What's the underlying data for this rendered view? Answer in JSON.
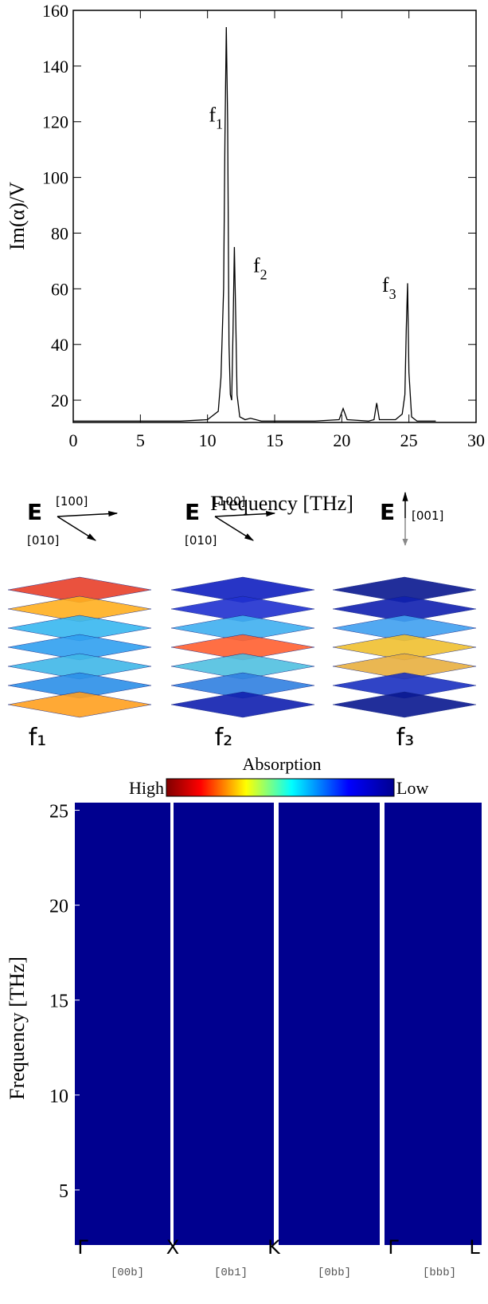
{
  "chart_data": [
    {
      "type": "line",
      "x_label": "Frequency [THz]",
      "y_label": "Im(α)/V",
      "xlim": [
        0,
        30
      ],
      "ylim": [
        12,
        160
      ],
      "xticks": [
        0,
        5,
        10,
        15,
        20,
        25,
        30
      ],
      "yticks": [
        20,
        40,
        60,
        80,
        100,
        120,
        140,
        160
      ],
      "series": [
        {
          "color": "#000000",
          "x": [
            0,
            5,
            8,
            10,
            10.8,
            11.0,
            11.2,
            11.3,
            11.4,
            11.5,
            11.6,
            11.7,
            11.8,
            11.9,
            12.0,
            12.1,
            12.2,
            12.4,
            12.8,
            13.2,
            14,
            18,
            19.8,
            20.1,
            20.4,
            22,
            22.4,
            22.6,
            22.8,
            24,
            24.5,
            24.7,
            24.8,
            24.9,
            25.0,
            25.2,
            25.6,
            27
          ],
          "values": [
            12.5,
            12.5,
            12.5,
            13,
            16,
            28,
            60,
            115,
            154,
            120,
            40,
            22,
            20,
            45,
            75,
            50,
            22,
            14,
            13,
            13.5,
            12.5,
            12.5,
            13,
            17,
            13,
            12.5,
            13,
            19,
            13,
            13,
            15,
            22,
            45,
            62,
            30,
            14,
            12.5,
            12.5
          ]
        }
      ],
      "annotations": [
        {
          "text": "f",
          "subscript": "1"
        },
        {
          "text": "f",
          "subscript": "2"
        },
        {
          "text": "f",
          "subscript": "3"
        }
      ]
    },
    {
      "type": "heatmap",
      "title": "Absorption",
      "colorbar_labels": [
        "High",
        "Low"
      ],
      "y_label": "Frequency [THz]",
      "ylim": [
        2.1,
        25.4
      ],
      "yticks": [
        5,
        10,
        15,
        20,
        25
      ],
      "path_points": [
        "Γ",
        "X",
        "K",
        "Γ",
        "L"
      ],
      "directions": [
        "[00b]",
        "[0b1]",
        "[0bb]",
        "[bbb]"
      ]
    }
  ],
  "field_panels": [
    {
      "field": "E",
      "directions": [
        "[100]",
        "[010]"
      ],
      "mode": "f₁"
    },
    {
      "field": "E",
      "directions": [
        "[100]",
        "[010]"
      ],
      "mode": "f₂"
    },
    {
      "field": "E",
      "directions": [
        "[001]"
      ],
      "mode": "f₃"
    }
  ]
}
